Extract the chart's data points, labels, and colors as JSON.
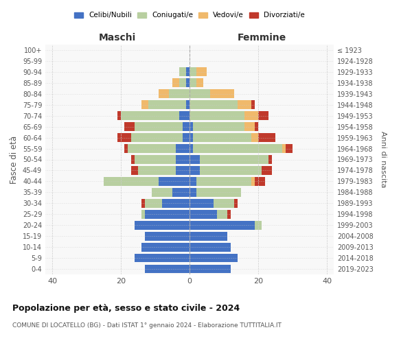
{
  "age_groups": [
    "0-4",
    "5-9",
    "10-14",
    "15-19",
    "20-24",
    "25-29",
    "30-34",
    "35-39",
    "40-44",
    "45-49",
    "50-54",
    "55-59",
    "60-64",
    "65-69",
    "70-74",
    "75-79",
    "80-84",
    "85-89",
    "90-94",
    "95-99",
    "100+"
  ],
  "birth_years": [
    "2019-2023",
    "2014-2018",
    "2009-2013",
    "2004-2008",
    "1999-2003",
    "1994-1998",
    "1989-1993",
    "1984-1988",
    "1979-1983",
    "1974-1978",
    "1969-1973",
    "1964-1968",
    "1959-1963",
    "1954-1958",
    "1949-1953",
    "1944-1948",
    "1939-1943",
    "1934-1938",
    "1929-1933",
    "1924-1928",
    "≤ 1923"
  ],
  "colors": {
    "celibi": "#4472c4",
    "coniugati": "#b8cfa0",
    "vedovi": "#f0b96b",
    "divorziati": "#c0392b"
  },
  "maschi": {
    "celibi": [
      13,
      16,
      14,
      13,
      16,
      13,
      8,
      5,
      9,
      4,
      4,
      4,
      2,
      2,
      3,
      1,
      0,
      1,
      1,
      0,
      0
    ],
    "coniugati": [
      0,
      0,
      0,
      0,
      0,
      1,
      5,
      6,
      16,
      11,
      12,
      14,
      15,
      14,
      17,
      11,
      6,
      2,
      2,
      0,
      0
    ],
    "vedovi": [
      0,
      0,
      0,
      0,
      0,
      0,
      0,
      0,
      0,
      0,
      0,
      0,
      0,
      0,
      0,
      2,
      3,
      2,
      0,
      0,
      0
    ],
    "divorziati": [
      0,
      0,
      0,
      0,
      0,
      0,
      1,
      0,
      0,
      2,
      1,
      1,
      4,
      3,
      1,
      0,
      0,
      0,
      0,
      0,
      0
    ]
  },
  "femmine": {
    "celibi": [
      12,
      14,
      12,
      11,
      19,
      8,
      7,
      2,
      2,
      3,
      3,
      1,
      1,
      1,
      0,
      0,
      0,
      0,
      0,
      0,
      0
    ],
    "coniugati": [
      0,
      0,
      0,
      0,
      2,
      3,
      6,
      13,
      16,
      18,
      20,
      26,
      17,
      15,
      16,
      14,
      6,
      2,
      2,
      0,
      0
    ],
    "vedovi": [
      0,
      0,
      0,
      0,
      0,
      0,
      0,
      0,
      1,
      0,
      0,
      1,
      2,
      3,
      4,
      4,
      7,
      2,
      3,
      0,
      0
    ],
    "divorziati": [
      0,
      0,
      0,
      0,
      0,
      1,
      1,
      0,
      3,
      3,
      1,
      2,
      5,
      1,
      3,
      1,
      0,
      0,
      0,
      0,
      0
    ]
  },
  "xlim": 42,
  "title": "Popolazione per età, sesso e stato civile - 2024",
  "subtitle": "COMUNE DI LOCATELLO (BG) - Dati ISTAT 1° gennaio 2024 - Elaborazione TUTTITALIA.IT",
  "ylabel_left": "Fasce di età",
  "ylabel_right": "Anni di nascita",
  "xlabel_left": "Maschi",
  "xlabel_right": "Femmine",
  "bg_color": "#f8f8f8",
  "grid_color": "#cccccc"
}
